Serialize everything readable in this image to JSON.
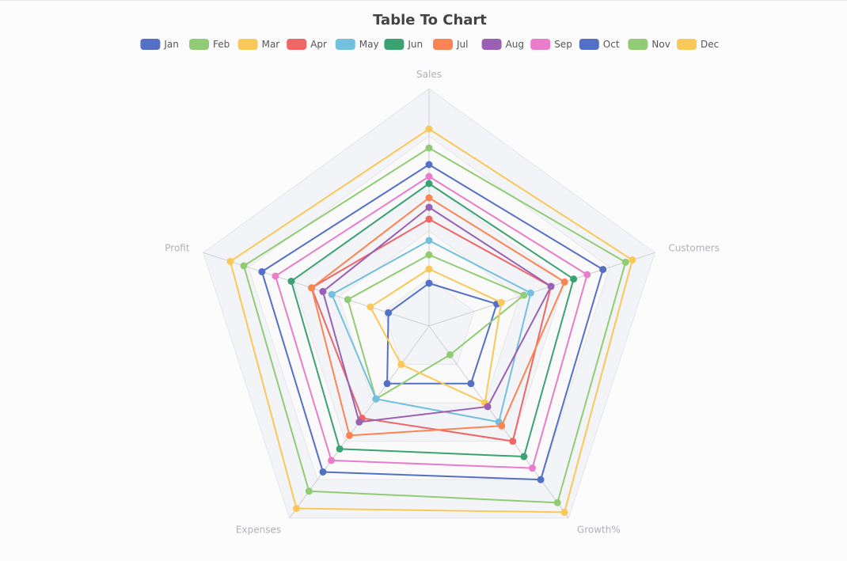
{
  "chart_data": {
    "type": "radar",
    "title": "Table To Chart",
    "indicators": [
      "Sales",
      "Customers",
      "Growth%",
      "Expenses",
      "Profit"
    ],
    "max": 100,
    "legend_position": "top",
    "series": [
      {
        "name": "Jan",
        "color": "#5470c6",
        "values": [
          18,
          30,
          30,
          30,
          18
        ]
      },
      {
        "name": "Feb",
        "color": "#91cc75",
        "values": [
          30,
          42,
          15,
          38,
          36
        ]
      },
      {
        "name": "Mar",
        "color": "#fac858",
        "values": [
          24,
          32,
          40,
          20,
          26
        ]
      },
      {
        "name": "Apr",
        "color": "#ee6666",
        "values": [
          45,
          54,
          60,
          48,
          52
        ]
      },
      {
        "name": "May",
        "color": "#73c0de",
        "values": [
          36,
          45,
          50,
          38,
          43
        ]
      },
      {
        "name": "Jun",
        "color": "#3ba272",
        "values": [
          60,
          64,
          68,
          64,
          61
        ]
      },
      {
        "name": "Jul",
        "color": "#fc8452",
        "values": [
          54,
          60,
          52,
          57,
          52
        ]
      },
      {
        "name": "Aug",
        "color": "#9a60b4",
        "values": [
          50,
          54,
          42,
          50,
          47
        ]
      },
      {
        "name": "Sep",
        "color": "#ea7ccc",
        "values": [
          63,
          70,
          74,
          70,
          68
        ]
      },
      {
        "name": "Oct",
        "color": "#5470c6",
        "values": [
          68,
          77,
          80,
          76,
          74
        ]
      },
      {
        "name": "Nov",
        "color": "#91cc75",
        "values": [
          75,
          87,
          92,
          86,
          82
        ]
      },
      {
        "name": "Dec",
        "color": "#fac858",
        "values": [
          83,
          90,
          97,
          95,
          88
        ]
      }
    ]
  }
}
